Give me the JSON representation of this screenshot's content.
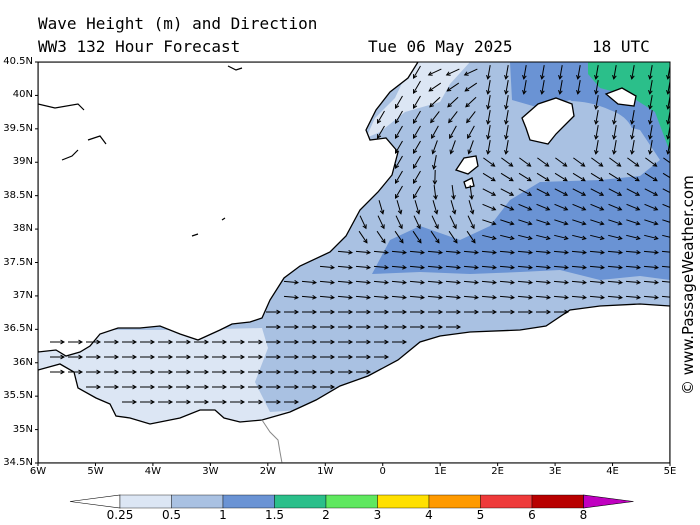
{
  "header": {
    "title": "Wave Height (m) and Direction",
    "subtitle": "WW3 132 Hour Forecast",
    "date": "Tue 06 May 2025",
    "time": "18 UTC"
  },
  "watermark": "© www.PassageWeather.com",
  "axes": {
    "lat_labels": [
      "40.5N",
      "40N",
      "39.5N",
      "39N",
      "38.5N",
      "38N",
      "37.5N",
      "37N",
      "36.5N",
      "36N",
      "35.5N",
      "35N",
      "34.5N"
    ],
    "lon_labels": [
      "6W",
      "5W",
      "4W",
      "3W",
      "2W",
      "1W",
      "0",
      "1E",
      "2E",
      "3E",
      "4E",
      "5E"
    ],
    "lat_range": [
      34.5,
      40.5
    ],
    "lon_range": [
      -6,
      5
    ]
  },
  "legend": {
    "labels": [
      "0.25",
      "0.5",
      "1",
      "1.5",
      "2",
      "3",
      "4",
      "5",
      "6",
      "8"
    ],
    "colors": [
      "#ffffff",
      "#dce6f4",
      "#a9c1e2",
      "#6a93d4",
      "#2bbf8a",
      "#5fe85f",
      "#ffe000",
      "#ff9a00",
      "#ee3a3a",
      "#b80000",
      "#c000c0"
    ]
  },
  "map": {
    "sea_color_low": "#dce6f4",
    "sea_color_mid": "#a9c1e2",
    "sea_color_high": "#6a93d4",
    "sea_color_green": "#2bbf8a",
    "land_color": "#ffffff",
    "coast_color": "#000000"
  }
}
